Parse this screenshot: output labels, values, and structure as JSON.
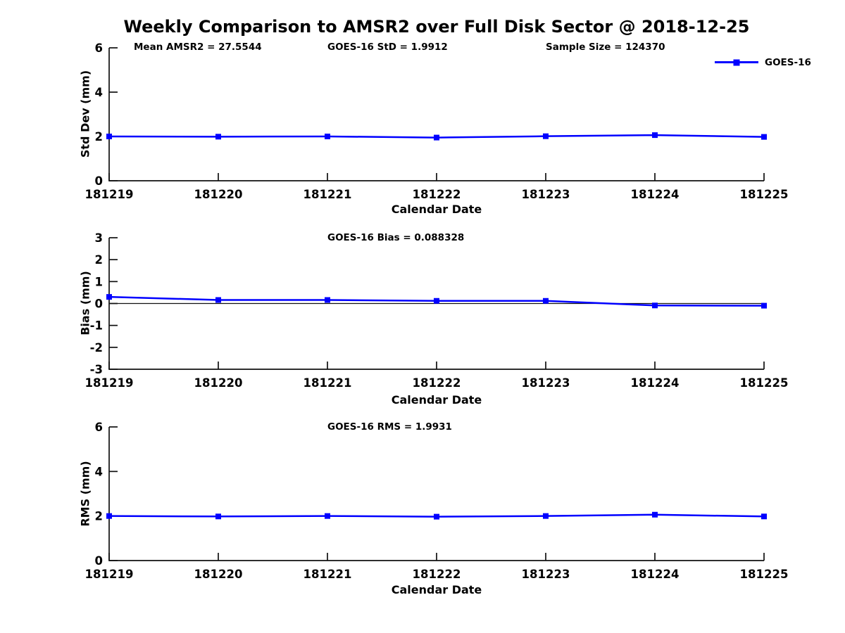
{
  "figure": {
    "title": "Weekly Comparison to AMSR2 over Full Disk Sector @ 2018-12-25"
  },
  "legend": {
    "label": "GOES-16",
    "color": "#0000FF",
    "position": "top-right-outside"
  },
  "stats": {
    "mean_amsr2": 27.5544,
    "goes16_std": 1.9912,
    "sample_size": 124370,
    "goes16_bias": 0.088328,
    "goes16_rms": 1.9931
  },
  "chart_data": [
    {
      "type": "line",
      "name": "std-dev-subplot",
      "categories": [
        "181219",
        "181220",
        "181221",
        "181222",
        "181223",
        "181224",
        "181225"
      ],
      "series": [
        {
          "name": "GOES-16",
          "color": "#0000FF",
          "marker": "square",
          "values": [
            2.0,
            1.99,
            2.0,
            1.95,
            2.01,
            2.06,
            1.98
          ]
        }
      ],
      "annotations": [
        "Mean AMSR2 = 27.5544",
        "GOES-16 StD = 1.9912",
        "Sample Size = 124370"
      ],
      "xlabel": "Calendar Date",
      "ylabel": "Std Dev (mm)",
      "ylim": [
        0,
        6
      ],
      "yticks": [
        0,
        2,
        4,
        6
      ],
      "grid": false,
      "zero_line": false
    },
    {
      "type": "line",
      "name": "bias-subplot",
      "categories": [
        "181219",
        "181220",
        "181221",
        "181222",
        "181223",
        "181224",
        "181225"
      ],
      "series": [
        {
          "name": "GOES-16",
          "color": "#0000FF",
          "marker": "square",
          "values": [
            0.3,
            0.16,
            0.16,
            0.12,
            0.12,
            -0.09,
            -0.1
          ]
        }
      ],
      "annotations": [
        "GOES-16 Bias  = 0.088328"
      ],
      "xlabel": "Calendar Date",
      "ylabel": "Bias (mm)",
      "ylim": [
        -3,
        3
      ],
      "yticks": [
        -3,
        -2,
        -1,
        0,
        1,
        2,
        3
      ],
      "grid": false,
      "zero_line": true
    },
    {
      "type": "line",
      "name": "rms-subplot",
      "categories": [
        "181219",
        "181220",
        "181221",
        "181222",
        "181223",
        "181224",
        "181225"
      ],
      "series": [
        {
          "name": "GOES-16",
          "color": "#0000FF",
          "marker": "square",
          "values": [
            2.0,
            1.98,
            2.0,
            1.97,
            2.0,
            2.06,
            1.98
          ]
        }
      ],
      "annotations": [
        "GOES-16 RMS = 1.9931"
      ],
      "xlabel": "Calendar Date",
      "ylabel": "RMS (mm)",
      "ylim": [
        0,
        6
      ],
      "yticks": [
        0,
        2,
        4,
        6
      ],
      "grid": false,
      "zero_line": false
    }
  ]
}
